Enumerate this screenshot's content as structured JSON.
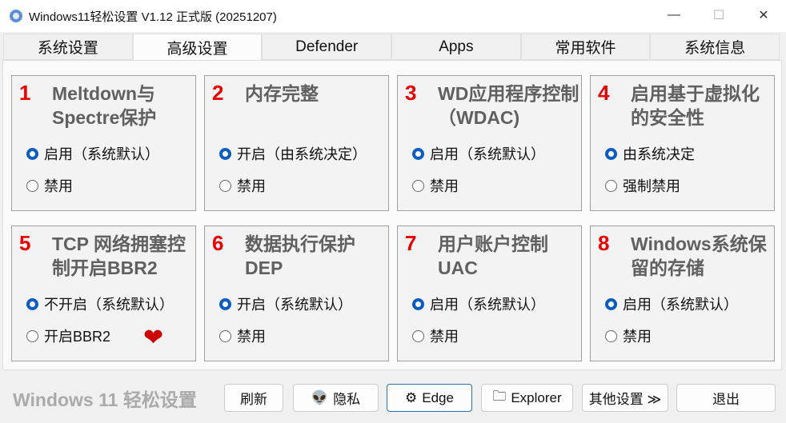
{
  "window": {
    "title": "Windows11轻松设置 V1.12 正式版 (20251207)",
    "minimize": "—",
    "maximize": "☐",
    "close": "✕"
  },
  "tabs": [
    "系统设置",
    "高级设置",
    "Defender",
    "Apps",
    "常用软件",
    "系统信息"
  ],
  "active_tab": 1,
  "cards": [
    {
      "num": "1",
      "title": "Meltdown与Spectre保护",
      "options": [
        "启用（系统默认）",
        "禁用"
      ],
      "selected": 0
    },
    {
      "num": "2",
      "title": "内存完整",
      "options": [
        "开启（由系统决定）",
        "禁用"
      ],
      "selected": 0
    },
    {
      "num": "3",
      "title": "WD应用程序控制（WDAC)",
      "options": [
        "启用（系统默认）",
        "禁用"
      ],
      "selected": 0
    },
    {
      "num": "4",
      "title": "启用基于虚拟化的安全性",
      "options": [
        "由系统决定",
        "强制禁用"
      ],
      "selected": 0
    },
    {
      "num": "5",
      "title": "TCP 网络拥塞控制开启BBR2",
      "options": [
        "不开启（系统默认）",
        "开启BBR2"
      ],
      "selected": 0
    },
    {
      "num": "6",
      "title": "数据执行保护DEP",
      "options": [
        "开启（系统默认）",
        "禁用"
      ],
      "selected": 0
    },
    {
      "num": "7",
      "title": "用户账户控制UAC",
      "options": [
        "启用（系统默认）",
        "禁用"
      ],
      "selected": 0
    },
    {
      "num": "8",
      "title": "Windows系统保留的存储",
      "options": [
        "启用（系统默认）",
        "禁用"
      ],
      "selected": 0
    }
  ],
  "footer": {
    "brand": "Windows 11 轻松设置",
    "refresh": "刷新",
    "privacy": "隐私",
    "edge": "Edge",
    "explorer": "Explorer",
    "more": "其他设置 ≫",
    "exit": "退出"
  },
  "colors": {
    "accent": "#0a5cc2",
    "number": "#e00000"
  }
}
